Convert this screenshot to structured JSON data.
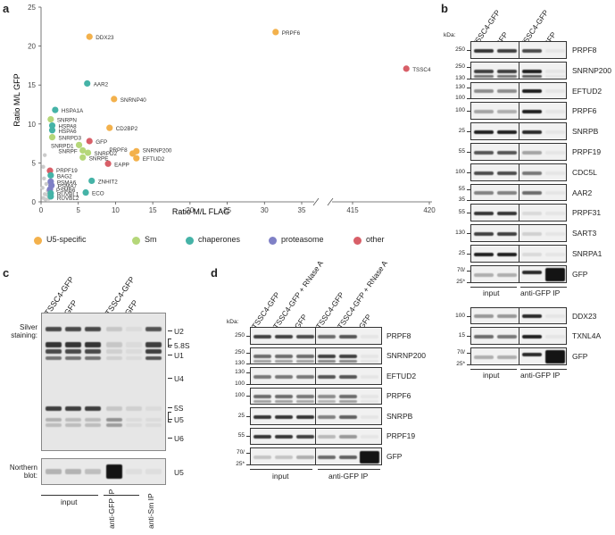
{
  "panel_labels": {
    "a": "a",
    "b": "b",
    "c": "c",
    "d": "d"
  },
  "chart_data": {
    "type": "scatter",
    "xlabel": "Ratio M/L FLAG",
    "ylabel": "Ratio M/L GFP",
    "ylim": [
      0,
      25
    ],
    "yticks": [
      0,
      5,
      10,
      15,
      20,
      25
    ],
    "xticks_left": [
      0,
      5,
      10,
      15,
      20,
      25,
      30,
      35
    ],
    "xticks_right": [
      415,
      420
    ],
    "x_break": [
      35,
      415
    ],
    "legend_position": "bottom",
    "categories": [
      {
        "name": "U5-specific",
        "color": "#f3b14c"
      },
      {
        "name": "Sm",
        "color": "#b5d779"
      },
      {
        "name": "chaperones",
        "color": "#45b3a7"
      },
      {
        "name": "proteasome",
        "color": "#7f80c6"
      },
      {
        "name": "other",
        "color": "#d85f68"
      }
    ],
    "points": [
      {
        "label": "PRPF6",
        "x": 31.5,
        "y": 21.8,
        "cat": "U5-specific"
      },
      {
        "label": "DDX23",
        "x": 6.5,
        "y": 21.2,
        "cat": "U5-specific"
      },
      {
        "label": "TSSC4",
        "x": 418.5,
        "y": 17.1,
        "cat": "other"
      },
      {
        "label": "AAR2",
        "x": 6.2,
        "y": 15.2,
        "cat": "chaperones"
      },
      {
        "label": "SNRNP40",
        "x": 9.8,
        "y": 13.2,
        "cat": "U5-specific"
      },
      {
        "label": "HSPA1A",
        "x": 1.9,
        "y": 11.8,
        "cat": "chaperones"
      },
      {
        "label": "SNRPN",
        "x": 1.3,
        "y": 10.6,
        "cat": "Sm"
      },
      {
        "label": "HSPA8",
        "x": 1.5,
        "y": 9.8,
        "cat": "chaperones"
      },
      {
        "label": "HSPA6",
        "x": 1.5,
        "y": 9.2,
        "cat": "chaperones"
      },
      {
        "label": "CD2BP2",
        "x": 9.2,
        "y": 9.5,
        "cat": "U5-specific"
      },
      {
        "label": "SNRPD3",
        "x": 1.5,
        "y": 8.3,
        "cat": "Sm"
      },
      {
        "label": "GFP",
        "x": 6.5,
        "y": 7.8,
        "cat": "other"
      },
      {
        "label": "SNRPD1",
        "x": 5.1,
        "y": 7.3,
        "cat": "Sm"
      },
      {
        "label": "SNRPF",
        "x": 5.6,
        "y": 6.6,
        "cat": "Sm"
      },
      {
        "label": "SNRPD2",
        "x": 6.3,
        "y": 6.3,
        "cat": "Sm"
      },
      {
        "label": "SNRPE",
        "x": 5.6,
        "y": 5.7,
        "cat": "Sm"
      },
      {
        "label": "PRPF8",
        "x": 12.3,
        "y": 6.2,
        "cat": "U5-specific"
      },
      {
        "label": "SNRNP200",
        "x": 12.8,
        "y": 6.5,
        "cat": "U5-specific"
      },
      {
        "label": "EFTUD2",
        "x": 12.8,
        "y": 5.6,
        "cat": "U5-specific"
      },
      {
        "label": "EAPP",
        "x": 9.0,
        "y": 4.9,
        "cat": "other"
      },
      {
        "label": "PRPF19",
        "x": 1.2,
        "y": 4.0,
        "cat": "other"
      },
      {
        "label": "BAG2",
        "x": 1.3,
        "y": 3.4,
        "cat": "chaperones"
      },
      {
        "label": "ZNHIT2",
        "x": 6.8,
        "y": 2.7,
        "cat": "chaperones"
      },
      {
        "label": "PSMA6",
        "x": 1.3,
        "y": 2.6,
        "cat": "proteasome"
      },
      {
        "label": "PSMA7",
        "x": 1.4,
        "y": 2.1,
        "cat": "proteasome"
      },
      {
        "label": "PSMB6",
        "x": 1.2,
        "y": 1.6,
        "cat": "proteasome"
      },
      {
        "label": "RUVBL1",
        "x": 1.3,
        "y": 1.1,
        "cat": "chaperones"
      },
      {
        "label": "RUVBL2",
        "x": 1.3,
        "y": 0.7,
        "cat": "chaperones"
      },
      {
        "label": "ECO",
        "x": 6.0,
        "y": 1.2,
        "cat": "chaperones"
      }
    ]
  },
  "panel_b": {
    "kda_label": "kDa:",
    "lanes": [
      "TSSC4-GFP",
      "GFP",
      "TSSC4-GFP",
      "GFP"
    ],
    "groups": [
      "input",
      "anti-GFP IP"
    ],
    "blots": [
      {
        "name": "PRPF8",
        "markers": [
          "250"
        ]
      },
      {
        "name": "SNRNP200",
        "markers": [
          "250",
          "130"
        ]
      },
      {
        "name": "EFTUD2",
        "markers": [
          "130",
          "100"
        ]
      },
      {
        "name": "PRPF6",
        "markers": [
          "100"
        ]
      },
      {
        "name": "SNRPB",
        "markers": [
          "25"
        ]
      },
      {
        "name": "PRPF19",
        "markers": [
          "55"
        ]
      },
      {
        "name": "CDC5L",
        "markers": [
          "100"
        ]
      },
      {
        "name": "AAR2",
        "markers": [
          "55",
          "35"
        ]
      },
      {
        "name": "PRPF31",
        "markers": [
          "55"
        ]
      },
      {
        "name": "SART3",
        "markers": [
          "130"
        ]
      },
      {
        "name": "SNRPA1",
        "markers": [
          "25"
        ]
      },
      {
        "name": "GFP",
        "markers": [
          "70/",
          "25*"
        ]
      }
    ],
    "blots2": [
      {
        "name": "DDX23",
        "markers": [
          "100"
        ]
      },
      {
        "name": "TXNL4A",
        "markers": [
          "15"
        ]
      },
      {
        "name": "GFP",
        "markers": [
          "70/",
          "25*"
        ]
      }
    ]
  },
  "panel_c": {
    "lanes": [
      "TSSC4-GFP",
      "GFP",
      "-",
      "TSSC4-GFP",
      "GFP",
      "-"
    ],
    "side_labels": [
      "Silver",
      "staining:"
    ],
    "rna_labels": [
      "U2",
      "5.8S",
      "U1",
      "U4",
      "5S",
      "U5",
      "U6"
    ],
    "northern_labels": [
      "Northern",
      "blot:"
    ],
    "northern_band": "U5",
    "groups": [
      "input",
      "anti-GFP IP",
      "anti-Sm IP"
    ]
  },
  "panel_d": {
    "kda_label": "kDa:",
    "lanes": [
      "TSSC4-GFP",
      "TSSC4-GFP + RNase A",
      "GFP",
      "TSSC4-GFP",
      "TSSC4-GFP + RNase A",
      "GFP"
    ],
    "groups": [
      "input",
      "anti-GFP IP"
    ],
    "blots": [
      {
        "name": "PRPF8",
        "markers": [
          "250"
        ]
      },
      {
        "name": "SNRNP200",
        "markers": [
          "250",
          "130"
        ]
      },
      {
        "name": "EFTUD2",
        "markers": [
          "130",
          "100"
        ]
      },
      {
        "name": "PRPF6",
        "markers": [
          "100"
        ]
      },
      {
        "name": "SNRPB",
        "markers": [
          "25"
        ]
      },
      {
        "name": "PRPF19",
        "markers": [
          "55"
        ]
      },
      {
        "name": "GFP",
        "markers": [
          "70/",
          "25*"
        ]
      }
    ]
  }
}
